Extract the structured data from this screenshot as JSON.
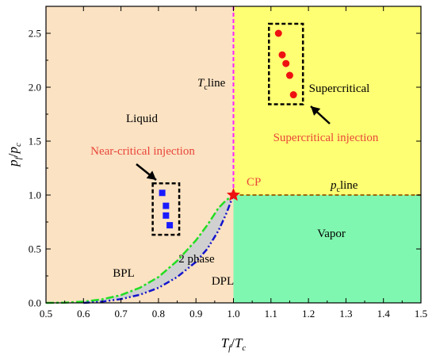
{
  "chart_data": {
    "type": "scatter",
    "xlim": [
      0.5,
      1.5
    ],
    "ylim": [
      0.0,
      2.75
    ],
    "x_ticks": [
      "0.5",
      "0.6",
      "0.7",
      "0.8",
      "0.9",
      "1.0",
      "1.1",
      "1.2",
      "1.3",
      "1.4",
      "1.5"
    ],
    "y_ticks": [
      "0.0",
      "0.5",
      "1.0",
      "1.5",
      "2.0",
      "2.5"
    ],
    "xlabel": {
      "main": "T",
      "sub1": "f",
      "mid": "/",
      "main2": "T",
      "sub2": "c"
    },
    "ylabel": {
      "main": "p",
      "sub1": "f",
      "mid": "/",
      "main2": "p",
      "sub2": "c"
    },
    "regions": {
      "liquid": "Liquid",
      "supercritical": "Supercritical",
      "vapor": "Vapor",
      "two_phase": "2 phase"
    },
    "curve_labels": {
      "bpl": "BPL",
      "dpl": "DPL",
      "tc_line_main": "T",
      "tc_line_sub": "c",
      "tc_line_rest": "line",
      "pc_line_main": "p",
      "pc_line_sub": "c",
      "pc_line_rest": "line",
      "cp": "CP"
    },
    "annotations": {
      "near_critical": "Near-critical injection",
      "supercritical": "Supercritical injection"
    },
    "critical_point": {
      "x": 1.0,
      "y": 1.0
    },
    "series": [
      {
        "marker": "square",
        "color": "#1a1aff",
        "points": [
          [
            0.81,
            1.02
          ],
          [
            0.82,
            0.9
          ],
          [
            0.82,
            0.81
          ],
          [
            0.83,
            0.72
          ]
        ]
      },
      {
        "marker": "circle",
        "color": "#ee1111",
        "points": [
          [
            1.12,
            2.5
          ],
          [
            1.13,
            2.3
          ],
          [
            1.14,
            2.22
          ],
          [
            1.15,
            2.11
          ],
          [
            1.16,
            1.93
          ]
        ]
      }
    ],
    "bpl_curve": [
      [
        0.5,
        0.0
      ],
      [
        0.55,
        0.002
      ],
      [
        0.6,
        0.012
      ],
      [
        0.65,
        0.033
      ],
      [
        0.7,
        0.072
      ],
      [
        0.75,
        0.14
      ],
      [
        0.8,
        0.24
      ],
      [
        0.85,
        0.39
      ],
      [
        0.9,
        0.58
      ],
      [
        0.93,
        0.72
      ],
      [
        0.96,
        0.88
      ],
      [
        0.98,
        0.95
      ],
      [
        1.0,
        1.0
      ]
    ],
    "dpl_curve": [
      [
        0.6,
        0.0
      ],
      [
        0.65,
        0.012
      ],
      [
        0.7,
        0.035
      ],
      [
        0.75,
        0.075
      ],
      [
        0.8,
        0.14
      ],
      [
        0.85,
        0.24
      ],
      [
        0.9,
        0.38
      ],
      [
        0.93,
        0.5
      ],
      [
        0.96,
        0.67
      ],
      [
        0.98,
        0.82
      ],
      [
        1.0,
        1.0
      ]
    ],
    "colors": {
      "liquid": "#fbe2c2",
      "supercritical": "#ffff73",
      "vapor": "#80f7b0",
      "two_phase": "#d0d0d0",
      "bpl": "#22dd22",
      "dpl": "#1414cc",
      "tc_line": "#ff22ff",
      "pc_line": "#9a6a10",
      "cp_star": "#ee1111"
    }
  }
}
